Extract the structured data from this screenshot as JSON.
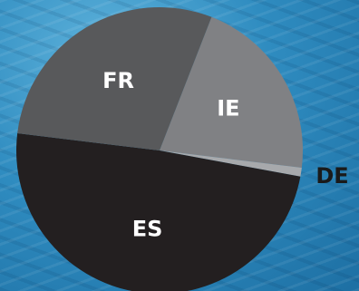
{
  "chart_data": {
    "type": "pie",
    "categories": [
      "IE",
      "DE",
      "ES",
      "FR"
    ],
    "values": [
      21,
      1,
      49,
      29
    ],
    "colors": [
      "#808184",
      "#a7a9ac",
      "#231f20",
      "#58595b"
    ]
  }
}
